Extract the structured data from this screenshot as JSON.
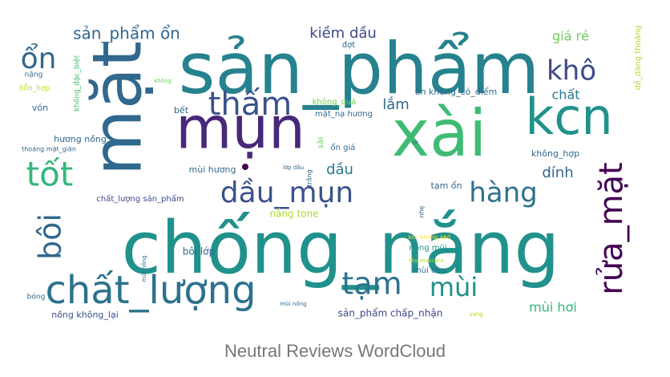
{
  "caption": "Neutral Reviews WordCloud",
  "chart_data": {
    "type": "wordcloud",
    "title": "Neutral Reviews WordCloud",
    "words": [
      {
        "text": "sản_phẩm",
        "weight": 0.84,
        "color": "#26828e"
      },
      {
        "text": "mặt",
        "weight": 0.78,
        "color": "#31688e",
        "rotated": true
      },
      {
        "text": "chống_nắng",
        "weight": 1.0,
        "color": "#21918c"
      },
      {
        "text": "xài",
        "weight": 0.86,
        "color": "#3fbc73"
      },
      {
        "text": "mụn",
        "weight": 0.74,
        "color": "#482878"
      },
      {
        "text": "kcn",
        "weight": 0.66,
        "color": "#21918c"
      },
      {
        "text": "chất_lượng",
        "weight": 0.5,
        "color": "#2c728e"
      },
      {
        "text": "thấm",
        "weight": 0.4,
        "color": "#3b528b"
      },
      {
        "text": "tốt",
        "weight": 0.42,
        "color": "#35b779"
      },
      {
        "text": "dầu_mụn",
        "weight": 0.38,
        "color": "#3b528b"
      },
      {
        "text": "hàng",
        "weight": 0.36,
        "color": "#2c728e"
      },
      {
        "text": "rửa_mặt",
        "weight": 0.42,
        "color": "#440154",
        "rotated": true
      },
      {
        "text": "bôi",
        "weight": 0.38,
        "color": "#31688e",
        "rotated": true
      },
      {
        "text": "tạm",
        "weight": 0.38,
        "color": "#2c728e"
      },
      {
        "text": "mùi",
        "weight": 0.32,
        "color": "#21918c"
      },
      {
        "text": "ổn",
        "weight": 0.32,
        "color": "#31688e"
      },
      {
        "text": "khô",
        "weight": 0.3,
        "color": "#3e4989"
      },
      {
        "text": "sản_phẩm ổn",
        "weight": 0.2,
        "color": "#31688e"
      },
      {
        "text": "kiềm dầu",
        "weight": 0.16,
        "color": "#3e4989"
      },
      {
        "text": "giá rẻ",
        "weight": 0.14,
        "color": "#6ece58"
      },
      {
        "text": "chất",
        "weight": 0.14,
        "color": "#2a788e"
      },
      {
        "text": "lắm",
        "weight": 0.14,
        "color": "#31688e"
      },
      {
        "text": "dầu",
        "weight": 0.14,
        "color": "#2a788e"
      },
      {
        "text": "dính",
        "weight": 0.14,
        "color": "#31688e"
      },
      {
        "text": "mùi hơi",
        "weight": 0.13,
        "color": "#35b779"
      },
      {
        "text": "hương nồng",
        "weight": 0.09,
        "color": "#31688e"
      },
      {
        "text": "sản_phẩm chấp_nhận",
        "weight": 0.09,
        "color": "#3e4989"
      },
      {
        "text": "nồng không_lại",
        "weight": 0.08,
        "color": "#3b528b"
      },
      {
        "text": "chất_lượng sản_phẩm",
        "weight": 0.07,
        "color": "#3e4989"
      },
      {
        "text": "nắng tone",
        "weight": 0.09,
        "color": "#addc30"
      },
      {
        "text": "bôi lớp",
        "weight": 0.09,
        "color": "#31688e"
      },
      {
        "text": "tạm ổn",
        "weight": 0.08,
        "color": "#31688e"
      },
      {
        "text": "không_hợp",
        "weight": 0.09,
        "color": "#31688e"
      },
      {
        "text": "ổn không_có_điểm",
        "weight": 0.08,
        "color": "#31688e"
      },
      {
        "text": "không_quá",
        "weight": 0.08,
        "color": "#6ece58"
      },
      {
        "text": "mặt_nạ hương",
        "weight": 0.07,
        "color": "#31688e"
      },
      {
        "text": "dễ_dàng thoảng",
        "weight": 0.07,
        "color": "#addc30",
        "rotated": true
      },
      {
        "text": "không_đặc_biệt",
        "weight": 0.06,
        "color": "#3fbc73",
        "rotated": true
      },
      {
        "text": "mùi hương",
        "weight": 0.08,
        "color": "#31688e"
      },
      {
        "text": "bết",
        "weight": 0.08,
        "color": "#31688e"
      },
      {
        "text": "vón",
        "weight": 0.08,
        "color": "#31688e"
      },
      {
        "text": "đợt",
        "weight": 0.07,
        "color": "#31688e"
      },
      {
        "text": "nồng mũi",
        "weight": 0.07,
        "color": "#21918c"
      },
      {
        "text": "mùi còn",
        "weight": 0.07,
        "color": "#31688e"
      },
      {
        "text": "ổn giá",
        "weight": 0.07,
        "color": "#31688e"
      },
      {
        "text": "sài",
        "weight": 0.07,
        "color": "#6ece58",
        "rotated": true
      },
      {
        "text": "hỗn_hợp",
        "weight": 0.06,
        "color": "#b5de2b"
      },
      {
        "text": "nặng",
        "weight": 0.06,
        "color": "#31688e"
      },
      {
        "text": "không",
        "weight": 0.05,
        "color": "#6ece58"
      },
      {
        "text": "thoảng mặt_giãn",
        "weight": 0.05,
        "color": "#31688e"
      },
      {
        "text": "lớp dầu",
        "weight": 0.05,
        "color": "#31688e"
      },
      {
        "text": "rít",
        "weight": 0.05,
        "color": "#31688e"
      },
      {
        "text": "trắng",
        "weight": 0.05,
        "color": "#31688e",
        "rotated": true
      },
      {
        "text": "nhẹ",
        "weight": 0.05,
        "color": "#31688e",
        "rotated": true
      },
      {
        "text": "kcn không_khô",
        "weight": 0.05,
        "color": "#fde725"
      },
      {
        "text": "tây mascara",
        "weight": 0.05,
        "color": "#b5de2b"
      },
      {
        "text": "mũi nồng",
        "weight": 0.05,
        "color": "#31688e",
        "rotated": true
      },
      {
        "text": "mùi nồng",
        "weight": 0.05,
        "color": "#31688e"
      },
      {
        "text": "bóng",
        "weight": 0.05,
        "color": "#31688e"
      },
      {
        "text": "vàng",
        "weight": 0.05,
        "color": "#addc30"
      }
    ]
  }
}
